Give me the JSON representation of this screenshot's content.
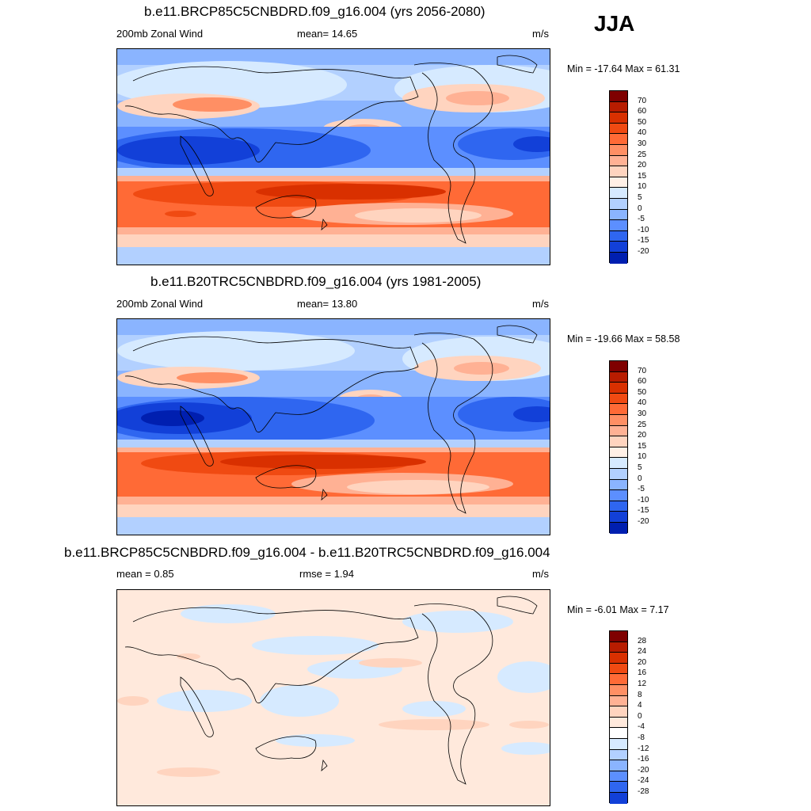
{
  "season": "JJA",
  "palette_main": [
    "#7f0000",
    "#b81c00",
    "#d93000",
    "#f04a12",
    "#ff6a36",
    "#ff8f64",
    "#ffb194",
    "#ffd4bf",
    "#fff0e6",
    "#d6eaff",
    "#b2d0ff",
    "#8ab4ff",
    "#5c8fff",
    "#2f66f0",
    "#1240d8",
    "#001fb0",
    "#000c80"
  ],
  "palette_diff": [
    "#7f0000",
    "#b81c00",
    "#d93000",
    "#f04a12",
    "#ff6a36",
    "#ff8f64",
    "#ffb194",
    "#ffd4bf",
    "#ffe9dc",
    "#ffffff",
    "#d6eaff",
    "#b2d0ff",
    "#8ab4ff",
    "#5c8fff",
    "#2f66f0",
    "#1240d8",
    "#001fb0",
    "#000c80"
  ],
  "panels": [
    {
      "title": "b.e11.BRCP85C5CNBDRD.f09_g16.004 (yrs 2056-2080)",
      "left_label": "200mb Zonal Wind",
      "center_label": "mean=  14.65",
      "units": "m/s",
      "minmax": "Min = -17.64 Max =  61.31",
      "levels": [
        "70",
        "60",
        "50",
        "40",
        "30",
        "25",
        "20",
        "15",
        "10",
        "5",
        "0",
        "-5",
        "-10",
        "-15",
        "-20"
      ]
    },
    {
      "title": "b.e11.B20TRC5CNBDRD.f09_g16.004 (yrs 1981-2005)",
      "left_label": "200mb Zonal Wind",
      "center_label": "mean=  13.80",
      "units": "m/s",
      "minmax": "Min = -19.66 Max =  58.58",
      "levels": [
        "70",
        "60",
        "50",
        "40",
        "30",
        "25",
        "20",
        "15",
        "10",
        "5",
        "0",
        "-5",
        "-10",
        "-15",
        "-20"
      ]
    },
    {
      "title": "b.e11.BRCP85C5CNBDRD.f09_g16.004 - b.e11.B20TRC5CNBDRD.f09_g16.004",
      "left_label": "mean =   0.85",
      "center_label": "rmse =   1.94",
      "units": "m/s",
      "minmax": "Min =  -6.01 Max =   7.17",
      "levels": [
        "28",
        "24",
        "20",
        "16",
        "12",
        "8",
        "4",
        "0",
        "-4",
        "-8",
        "-12",
        "-16",
        "-20",
        "-24",
        "-28"
      ]
    }
  ]
}
